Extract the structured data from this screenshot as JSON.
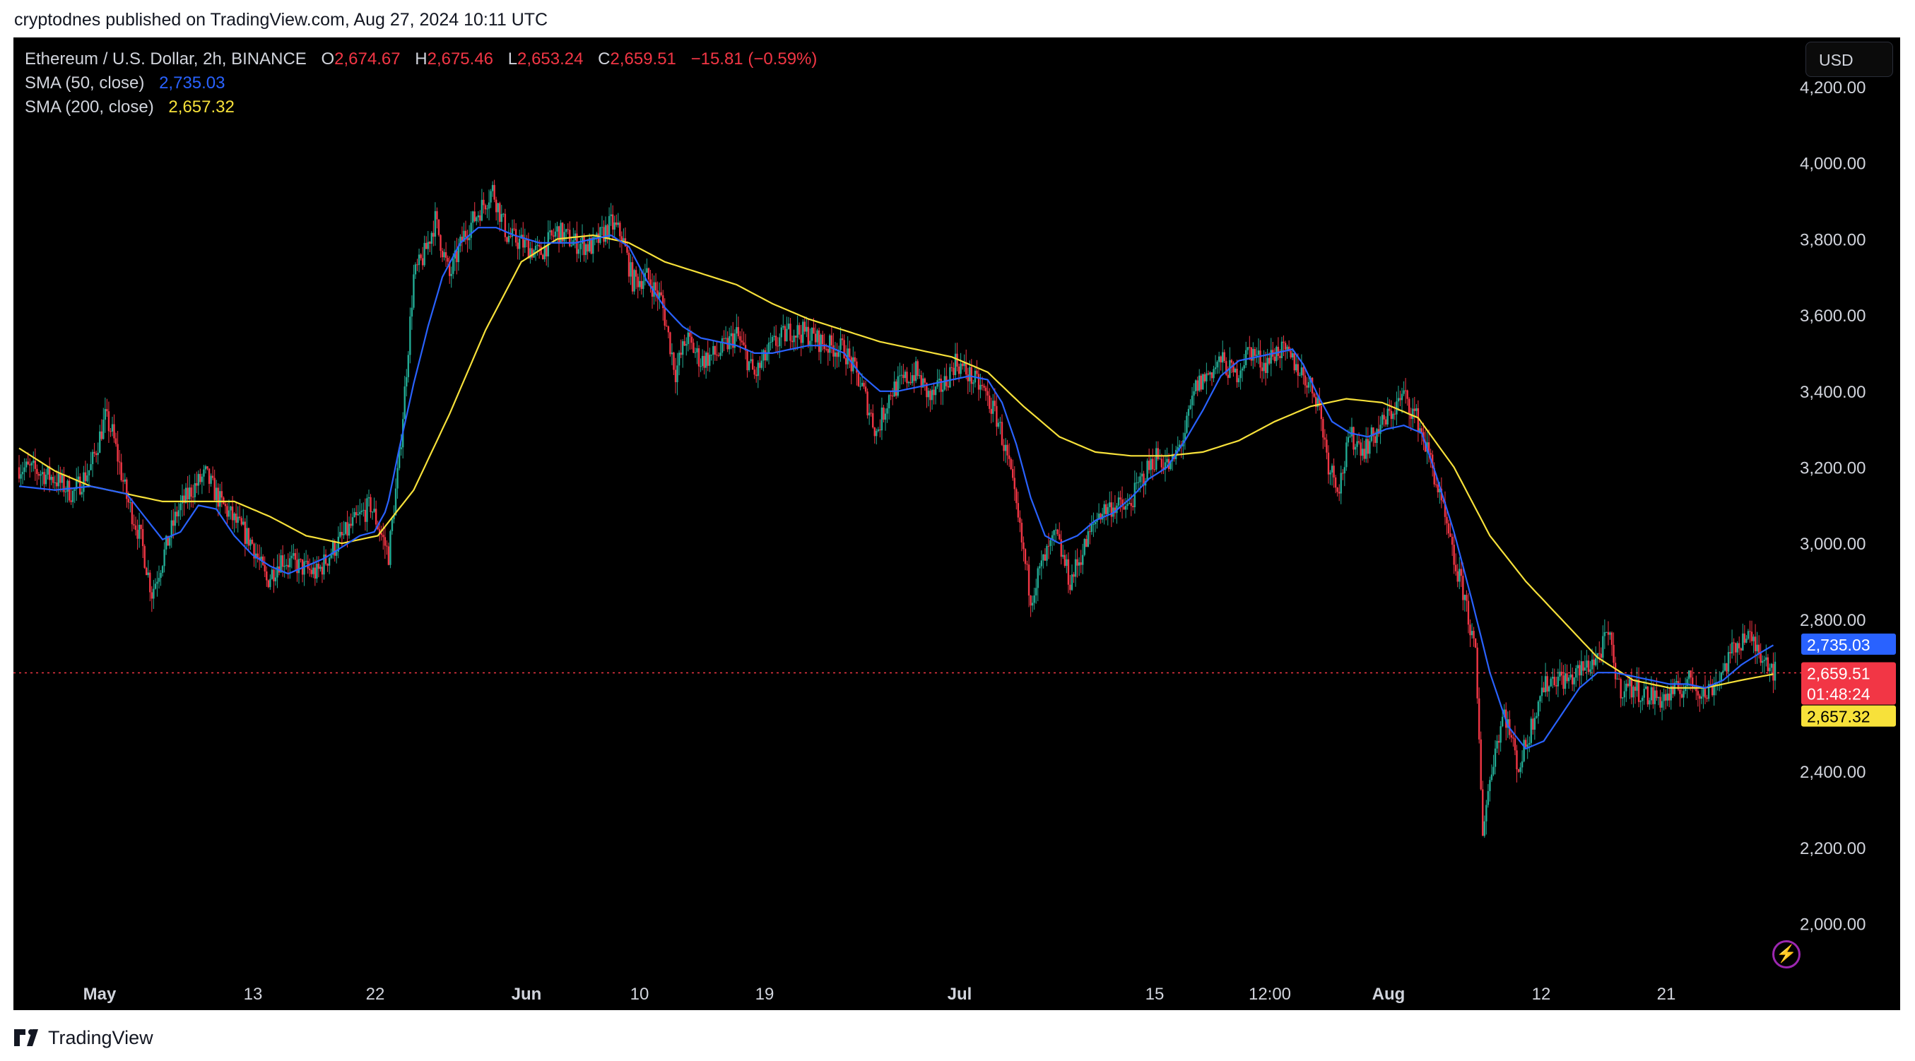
{
  "header": {
    "published_text": "cryptodnes published on TradingView.com, Aug 27, 2024 10:11 UTC"
  },
  "legend": {
    "symbol": "Ethereum / U.S. Dollar, 2h, BINANCE",
    "o_label": "O",
    "o_value": "2,674.67",
    "h_label": "H",
    "h_value": "2,675.46",
    "l_label": "L",
    "l_value": "2,653.24",
    "c_label": "C",
    "c_value": "2,659.51",
    "change": "−15.81 (−0.59%)",
    "sma50_label": "SMA (50, close)",
    "sma50_value": "2,735.03",
    "sma200_label": "SMA (200, close)",
    "sma200_value": "2,657.32"
  },
  "currency_button": "USD",
  "footer": {
    "brand": "TradingView"
  },
  "colors": {
    "up": "#22ab94",
    "down": "#f23645",
    "sma50": "#2962ff",
    "sma200": "#f7e13a",
    "axis_text": "#d1d4dc",
    "background": "#000000"
  },
  "chart_data": {
    "type": "candlestick",
    "title": "Ethereum / U.S. Dollar, 2h, BINANCE",
    "ylim": [
      1860,
      4330
    ],
    "y_ticks": [
      "4,200.00",
      "4,000.00",
      "3,800.00",
      "3,600.00",
      "3,400.00",
      "3,200.00",
      "3,000.00",
      "2,800.00",
      "2,400.00",
      "2,200.00",
      "2,000.00"
    ],
    "x_ticks": [
      "May",
      "13",
      "22",
      "Jun",
      "10",
      "19",
      "Jul",
      "15",
      "12:00",
      "Aug",
      "12",
      "21"
    ],
    "x_tick_bold": [
      "May",
      "Jun",
      "Jul",
      "Aug"
    ],
    "price_labels": {
      "sma50": "2,735.03",
      "last": "2,659.51",
      "countdown": "01:48:24",
      "sma200": "2,657.32"
    },
    "current_price": 2659.51,
    "close_series": [
      [
        0,
        3200
      ],
      [
        10,
        3190
      ],
      [
        20,
        3170
      ],
      [
        30,
        3130
      ],
      [
        40,
        3200
      ],
      [
        48,
        3330
      ],
      [
        52,
        3290
      ],
      [
        60,
        3120
      ],
      [
        68,
        3010
      ],
      [
        74,
        2870
      ],
      [
        80,
        2960
      ],
      [
        88,
        3080
      ],
      [
        96,
        3140
      ],
      [
        104,
        3180
      ],
      [
        112,
        3110
      ],
      [
        120,
        3060
      ],
      [
        130,
        3000
      ],
      [
        138,
        2900
      ],
      [
        146,
        2960
      ],
      [
        156,
        2940
      ],
      [
        166,
        2920
      ],
      [
        176,
        2990
      ],
      [
        186,
        3050
      ],
      [
        196,
        3100
      ],
      [
        206,
        2970
      ],
      [
        212,
        3220
      ],
      [
        216,
        3460
      ],
      [
        220,
        3700
      ],
      [
        226,
        3760
      ],
      [
        232,
        3850
      ],
      [
        240,
        3700
      ],
      [
        248,
        3810
      ],
      [
        256,
        3870
      ],
      [
        264,
        3930
      ],
      [
        272,
        3810
      ],
      [
        280,
        3790
      ],
      [
        290,
        3760
      ],
      [
        300,
        3820
      ],
      [
        310,
        3790
      ],
      [
        320,
        3780
      ],
      [
        330,
        3840
      ],
      [
        336,
        3810
      ],
      [
        342,
        3690
      ],
      [
        350,
        3700
      ],
      [
        358,
        3640
      ],
      [
        366,
        3450
      ],
      [
        372,
        3540
      ],
      [
        380,
        3480
      ],
      [
        390,
        3500
      ],
      [
        400,
        3550
      ],
      [
        410,
        3440
      ],
      [
        420,
        3520
      ],
      [
        430,
        3560
      ],
      [
        440,
        3550
      ],
      [
        450,
        3520
      ],
      [
        460,
        3510
      ],
      [
        470,
        3410
      ],
      [
        478,
        3290
      ],
      [
        486,
        3400
      ],
      [
        494,
        3430
      ],
      [
        500,
        3450
      ],
      [
        508,
        3380
      ],
      [
        516,
        3420
      ],
      [
        522,
        3480
      ],
      [
        530,
        3440
      ],
      [
        538,
        3400
      ],
      [
        546,
        3320
      ],
      [
        552,
        3200
      ],
      [
        558,
        3030
      ],
      [
        564,
        2860
      ],
      [
        570,
        2940
      ],
      [
        578,
        3020
      ],
      [
        586,
        2900
      ],
      [
        594,
        2990
      ],
      [
        602,
        3080
      ],
      [
        610,
        3100
      ],
      [
        618,
        3090
      ],
      [
        626,
        3170
      ],
      [
        634,
        3230
      ],
      [
        642,
        3200
      ],
      [
        650,
        3290
      ],
      [
        656,
        3410
      ],
      [
        662,
        3440
      ],
      [
        670,
        3480
      ],
      [
        678,
        3440
      ],
      [
        686,
        3510
      ],
      [
        694,
        3470
      ],
      [
        702,
        3510
      ],
      [
        710,
        3480
      ],
      [
        718,
        3430
      ],
      [
        724,
        3380
      ],
      [
        730,
        3210
      ],
      [
        736,
        3150
      ],
      [
        742,
        3280
      ],
      [
        750,
        3250
      ],
      [
        758,
        3300
      ],
      [
        766,
        3350
      ],
      [
        772,
        3390
      ],
      [
        780,
        3320
      ],
      [
        788,
        3200
      ],
      [
        794,
        3080
      ],
      [
        800,
        2950
      ],
      [
        806,
        2860
      ],
      [
        812,
        2700
      ],
      [
        816,
        2250
      ],
      [
        822,
        2440
      ],
      [
        828,
        2560
      ],
      [
        836,
        2410
      ],
      [
        842,
        2500
      ],
      [
        848,
        2610
      ],
      [
        856,
        2650
      ],
      [
        864,
        2640
      ],
      [
        872,
        2670
      ],
      [
        880,
        2700
      ],
      [
        886,
        2760
      ],
      [
        892,
        2620
      ],
      [
        900,
        2620
      ],
      [
        908,
        2600
      ],
      [
        916,
        2590
      ],
      [
        924,
        2610
      ],
      [
        932,
        2640
      ],
      [
        940,
        2600
      ],
      [
        948,
        2650
      ],
      [
        956,
        2720
      ],
      [
        962,
        2760
      ],
      [
        968,
        2730
      ],
      [
        974,
        2700
      ],
      [
        979,
        2660
      ]
    ],
    "sma50_series": [
      [
        0,
        3150
      ],
      [
        20,
        3140
      ],
      [
        40,
        3150
      ],
      [
        60,
        3130
      ],
      [
        70,
        3070
      ],
      [
        80,
        3010
      ],
      [
        90,
        3030
      ],
      [
        100,
        3100
      ],
      [
        110,
        3090
      ],
      [
        120,
        3020
      ],
      [
        130,
        2970
      ],
      [
        140,
        2940
      ],
      [
        150,
        2920
      ],
      [
        160,
        2940
      ],
      [
        170,
        2960
      ],
      [
        180,
        2990
      ],
      [
        190,
        3020
      ],
      [
        198,
        3030
      ],
      [
        205,
        3090
      ],
      [
        212,
        3250
      ],
      [
        220,
        3420
      ],
      [
        228,
        3570
      ],
      [
        236,
        3700
      ],
      [
        246,
        3790
      ],
      [
        256,
        3830
      ],
      [
        266,
        3830
      ],
      [
        276,
        3810
      ],
      [
        290,
        3790
      ],
      [
        300,
        3790
      ],
      [
        310,
        3790
      ],
      [
        320,
        3800
      ],
      [
        330,
        3810
      ],
      [
        340,
        3780
      ],
      [
        350,
        3690
      ],
      [
        360,
        3620
      ],
      [
        370,
        3570
      ],
      [
        380,
        3540
      ],
      [
        390,
        3530
      ],
      [
        400,
        3520
      ],
      [
        410,
        3500
      ],
      [
        420,
        3500
      ],
      [
        430,
        3510
      ],
      [
        440,
        3520
      ],
      [
        450,
        3520
      ],
      [
        460,
        3500
      ],
      [
        470,
        3440
      ],
      [
        480,
        3400
      ],
      [
        490,
        3400
      ],
      [
        500,
        3410
      ],
      [
        510,
        3420
      ],
      [
        520,
        3430
      ],
      [
        530,
        3440
      ],
      [
        540,
        3430
      ],
      [
        548,
        3370
      ],
      [
        556,
        3260
      ],
      [
        564,
        3120
      ],
      [
        572,
        3020
      ],
      [
        580,
        3000
      ],
      [
        590,
        3020
      ],
      [
        600,
        3060
      ],
      [
        610,
        3080
      ],
      [
        620,
        3120
      ],
      [
        630,
        3170
      ],
      [
        640,
        3200
      ],
      [
        650,
        3270
      ],
      [
        660,
        3350
      ],
      [
        670,
        3440
      ],
      [
        680,
        3480
      ],
      [
        690,
        3490
      ],
      [
        700,
        3500
      ],
      [
        710,
        3510
      ],
      [
        716,
        3470
      ],
      [
        724,
        3390
      ],
      [
        732,
        3320
      ],
      [
        742,
        3290
      ],
      [
        752,
        3280
      ],
      [
        762,
        3300
      ],
      [
        772,
        3310
      ],
      [
        782,
        3290
      ],
      [
        790,
        3180
      ],
      [
        800,
        3030
      ],
      [
        810,
        2850
      ],
      [
        820,
        2660
      ],
      [
        830,
        2520
      ],
      [
        840,
        2460
      ],
      [
        850,
        2480
      ],
      [
        860,
        2550
      ],
      [
        870,
        2620
      ],
      [
        880,
        2660
      ],
      [
        890,
        2660
      ],
      [
        900,
        2650
      ],
      [
        910,
        2640
      ],
      [
        920,
        2630
      ],
      [
        930,
        2630
      ],
      [
        940,
        2620
      ],
      [
        950,
        2640
      ],
      [
        960,
        2680
      ],
      [
        970,
        2710
      ],
      [
        979,
        2735
      ]
    ],
    "sma200_series": [
      [
        0,
        3250
      ],
      [
        20,
        3190
      ],
      [
        40,
        3150
      ],
      [
        60,
        3130
      ],
      [
        80,
        3110
      ],
      [
        100,
        3110
      ],
      [
        120,
        3110
      ],
      [
        140,
        3070
      ],
      [
        160,
        3020
      ],
      [
        180,
        3000
      ],
      [
        200,
        3020
      ],
      [
        220,
        3140
      ],
      [
        240,
        3340
      ],
      [
        260,
        3560
      ],
      [
        280,
        3740
      ],
      [
        300,
        3800
      ],
      [
        320,
        3810
      ],
      [
        340,
        3790
      ],
      [
        360,
        3740
      ],
      [
        380,
        3710
      ],
      [
        400,
        3680
      ],
      [
        420,
        3630
      ],
      [
        440,
        3590
      ],
      [
        460,
        3560
      ],
      [
        480,
        3530
      ],
      [
        500,
        3510
      ],
      [
        520,
        3490
      ],
      [
        540,
        3450
      ],
      [
        560,
        3360
      ],
      [
        580,
        3280
      ],
      [
        600,
        3240
      ],
      [
        620,
        3230
      ],
      [
        640,
        3230
      ],
      [
        660,
        3240
      ],
      [
        680,
        3270
      ],
      [
        700,
        3320
      ],
      [
        720,
        3360
      ],
      [
        740,
        3380
      ],
      [
        760,
        3370
      ],
      [
        780,
        3330
      ],
      [
        800,
        3200
      ],
      [
        820,
        3020
      ],
      [
        840,
        2900
      ],
      [
        860,
        2800
      ],
      [
        880,
        2700
      ],
      [
        900,
        2640
      ],
      [
        920,
        2620
      ],
      [
        940,
        2620
      ],
      [
        960,
        2640
      ],
      [
        979,
        2657
      ]
    ],
    "x_index_max": 979
  }
}
